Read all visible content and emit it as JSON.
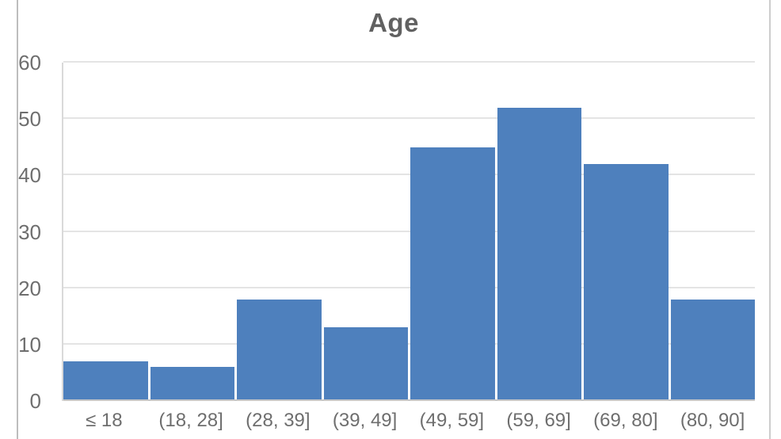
{
  "chart_data": {
    "type": "bar",
    "title": "Age",
    "categories": [
      "≤ 18",
      "(18, 28]",
      "(28, 39]",
      "(39, 49]",
      "(49, 59]",
      "(59, 69]",
      "(69, 80]",
      "(80, 90]"
    ],
    "values": [
      7,
      6,
      18,
      13,
      45,
      52,
      42,
      18
    ],
    "xlabel": "",
    "ylabel": "",
    "ylim": [
      0,
      60
    ],
    "yticks": [
      0,
      10,
      20,
      30,
      40,
      50,
      60
    ],
    "grid": true,
    "legend": false,
    "bar_color": "#4e80bd",
    "grid_color": "#e4e4e4",
    "axis_line_color": "#c6c6c6",
    "text_color": "#6e6e6e",
    "title_color": "#616161",
    "frame_color": "#bdbdbd"
  }
}
